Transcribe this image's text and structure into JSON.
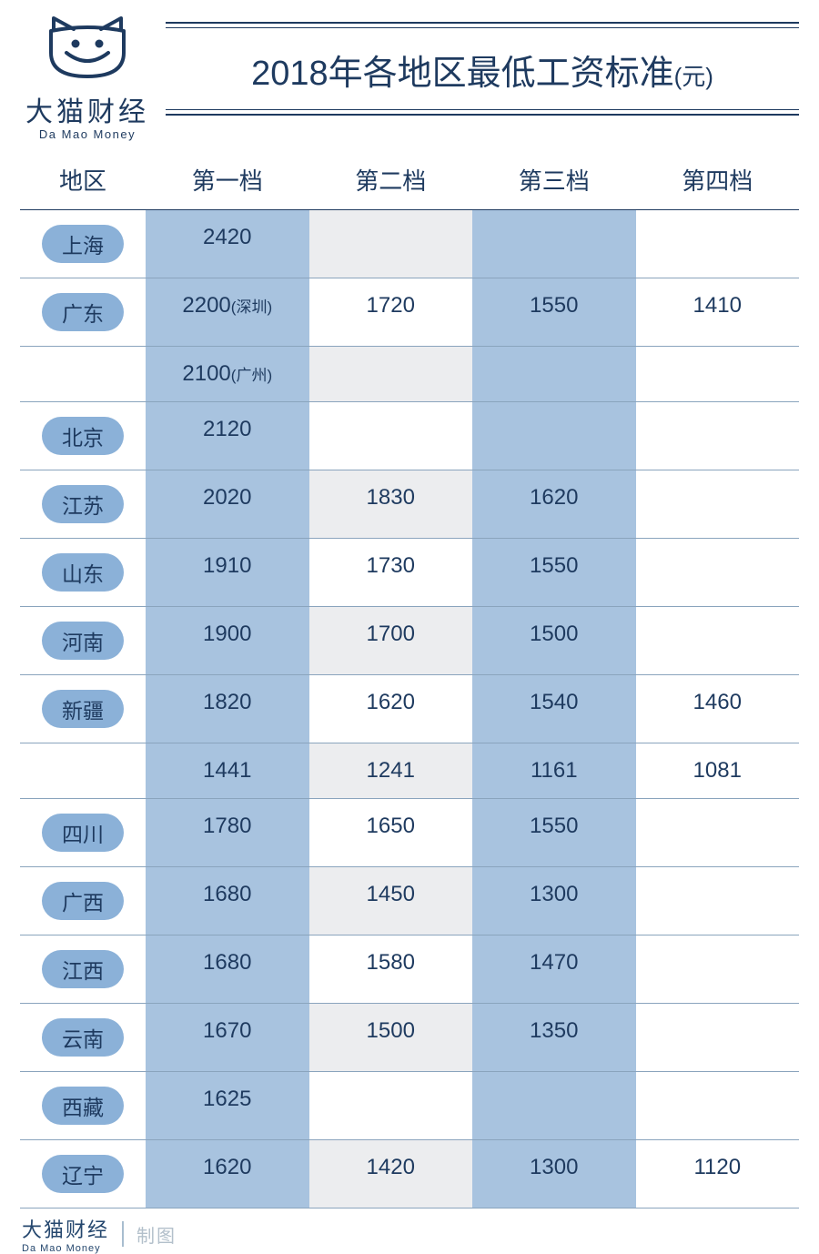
{
  "brand": {
    "name_cn": "大猫财经",
    "name_en": "Da Mao Money",
    "line_color": "#1e3a5f"
  },
  "title": {
    "main": "2018年各地区最低工资标准",
    "unit": "(元)",
    "font_size": 38,
    "color": "#1e3a5f"
  },
  "table": {
    "header_color": "#1e3a5f",
    "border_color": "#8aa4bd",
    "pill_bg": "#8bb1d8",
    "col1_bg": "#a8c3df",
    "col3_bg": "#a8c3df",
    "col2_even_bg": "#ecedef",
    "font_size_header": 26,
    "font_size_cell": 24,
    "columns": [
      "地区",
      "第一档",
      "第二档",
      "第三档",
      "第四档"
    ],
    "rows": [
      {
        "region": "上海",
        "c1": "2420",
        "c2": "",
        "c3": "",
        "c4": ""
      },
      {
        "region": "广东",
        "c1": "2200(深圳)",
        "c2": "1720",
        "c3": "1550",
        "c4": "1410"
      },
      {
        "region": "",
        "c1": "2100(广州)",
        "c2": "",
        "c3": "",
        "c4": ""
      },
      {
        "region": "北京",
        "c1": "2120",
        "c2": "",
        "c3": "",
        "c4": ""
      },
      {
        "region": "江苏",
        "c1": "2020",
        "c2": "1830",
        "c3": "1620",
        "c4": ""
      },
      {
        "region": "山东",
        "c1": "1910",
        "c2": "1730",
        "c3": "1550",
        "c4": ""
      },
      {
        "region": "河南",
        "c1": "1900",
        "c2": "1700",
        "c3": "1500",
        "c4": ""
      },
      {
        "region": "新疆",
        "c1": "1820",
        "c2": "1620",
        "c3": "1540",
        "c4": "1460"
      },
      {
        "region": "",
        "c1": "1441",
        "c2": "1241",
        "c3": "1161",
        "c4": "1081"
      },
      {
        "region": "四川",
        "c1": "1780",
        "c2": "1650",
        "c3": "1550",
        "c4": ""
      },
      {
        "region": "广西",
        "c1": "1680",
        "c2": "1450",
        "c3": "1300",
        "c4": ""
      },
      {
        "region": "江西",
        "c1": "1680",
        "c2": "1580",
        "c3": "1470",
        "c4": ""
      },
      {
        "region": "云南",
        "c1": "1670",
        "c2": "1500",
        "c3": "1350",
        "c4": ""
      },
      {
        "region": "西藏",
        "c1": "1625",
        "c2": "",
        "c3": "",
        "c4": ""
      },
      {
        "region": "辽宁",
        "c1": "1620",
        "c2": "1420",
        "c3": "1300",
        "c4": "1120"
      }
    ]
  },
  "footer": {
    "brand_cn": "大猫财经",
    "brand_en": "Da Mao Money",
    "made": "制图"
  }
}
